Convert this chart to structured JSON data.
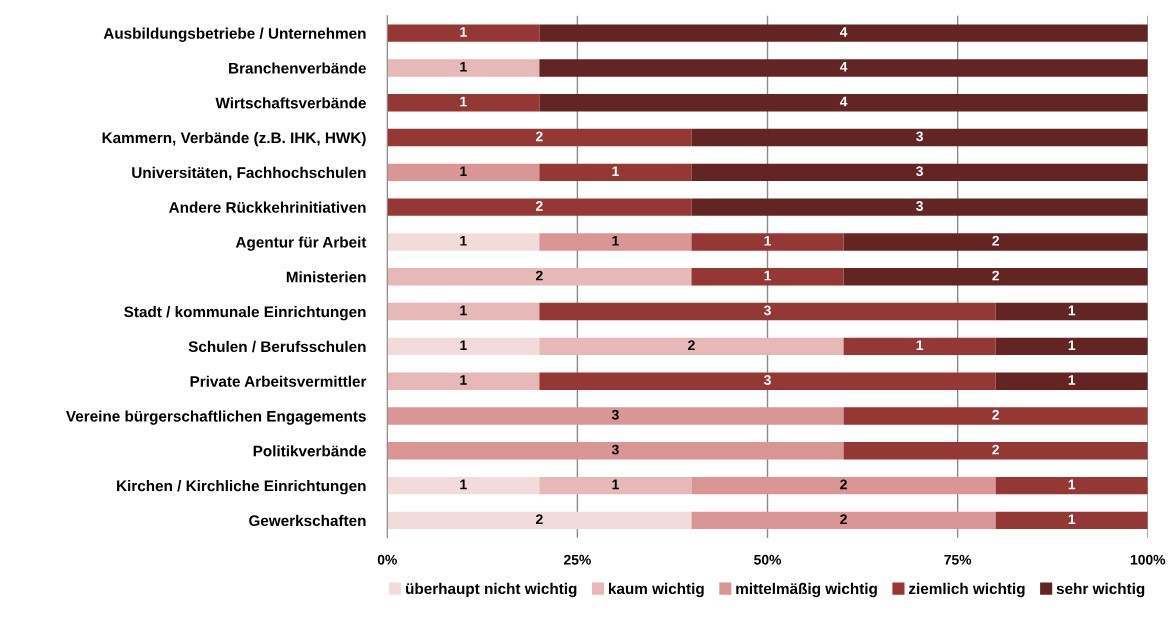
{
  "chart_data": {
    "type": "bar",
    "orientation": "horizontal",
    "stacked": true,
    "categories": [
      "Ausbildungsbetriebe / Unternehmen",
      "Branchenverbände",
      "Wirtschaftsverbände",
      "Kammern, Verbände (z.B. IHK, HWK)",
      "Universitäten, Fachhochschulen",
      "Andere Rückkehrinitiativen",
      "Agentur für Arbeit",
      "Ministerien",
      "Stadt / kommunale Einrichtungen",
      "Schulen / Berufsschulen",
      "Private Arbeitsvermittler",
      "Vereine bürgerschaftlichen Engagements",
      "Politikverbände",
      "Kirchen / Kirchliche Einrichtungen",
      "Gewerkschaften"
    ],
    "series": [
      {
        "name": "überhaupt nicht wichtig",
        "color": "#f2dcdb",
        "values": [
          null,
          null,
          null,
          null,
          null,
          null,
          20,
          null,
          null,
          20,
          null,
          null,
          null,
          20,
          40
        ]
      },
      {
        "name": "kaum wichtig",
        "color": "#e6b9b8",
        "values": [
          null,
          20,
          null,
          null,
          null,
          null,
          null,
          40,
          20,
          40,
          20,
          null,
          null,
          20,
          null
        ]
      },
      {
        "name": "mittelmäßig wichtig",
        "color": "#d99694",
        "values": [
          null,
          null,
          null,
          null,
          20,
          null,
          20,
          null,
          null,
          null,
          null,
          60,
          60,
          40,
          40
        ]
      },
      {
        "name": "ziemlich wichtig",
        "color": "#953735",
        "values": [
          20,
          null,
          20,
          40,
          20,
          40,
          20,
          20,
          60,
          20,
          60,
          40,
          40,
          20,
          20
        ]
      },
      {
        "name": "sehr wichtig",
        "color": "#632523",
        "values": [
          80,
          80,
          80,
          60,
          60,
          60,
          40,
          40,
          20,
          20,
          20,
          null,
          null,
          null,
          null
        ]
      }
    ],
    "annotations": [
      "1",
      "4",
      "1",
      "4",
      "1",
      "4",
      "2",
      "3",
      "1",
      "1",
      "3",
      "2",
      "3",
      "1",
      "1",
      "1",
      "2",
      "2",
      "1",
      "2",
      "1",
      "3",
      "1",
      "1",
      "2",
      "1",
      "1",
      "1",
      "3",
      "1",
      "3",
      "2",
      "3",
      "2",
      "1",
      "1",
      "2",
      "1",
      "2",
      "2",
      "1"
    ],
    "xlim": [
      0,
      100
    ],
    "xticks": [
      {
        "value": 0,
        "label": "0%"
      },
      {
        "value": 25,
        "label": "25%"
      },
      {
        "value": 50,
        "label": "50%"
      },
      {
        "value": 75,
        "label": "75%"
      },
      {
        "value": 100,
        "label": "100%"
      }
    ],
    "grid": "x",
    "legend": "bottom"
  }
}
